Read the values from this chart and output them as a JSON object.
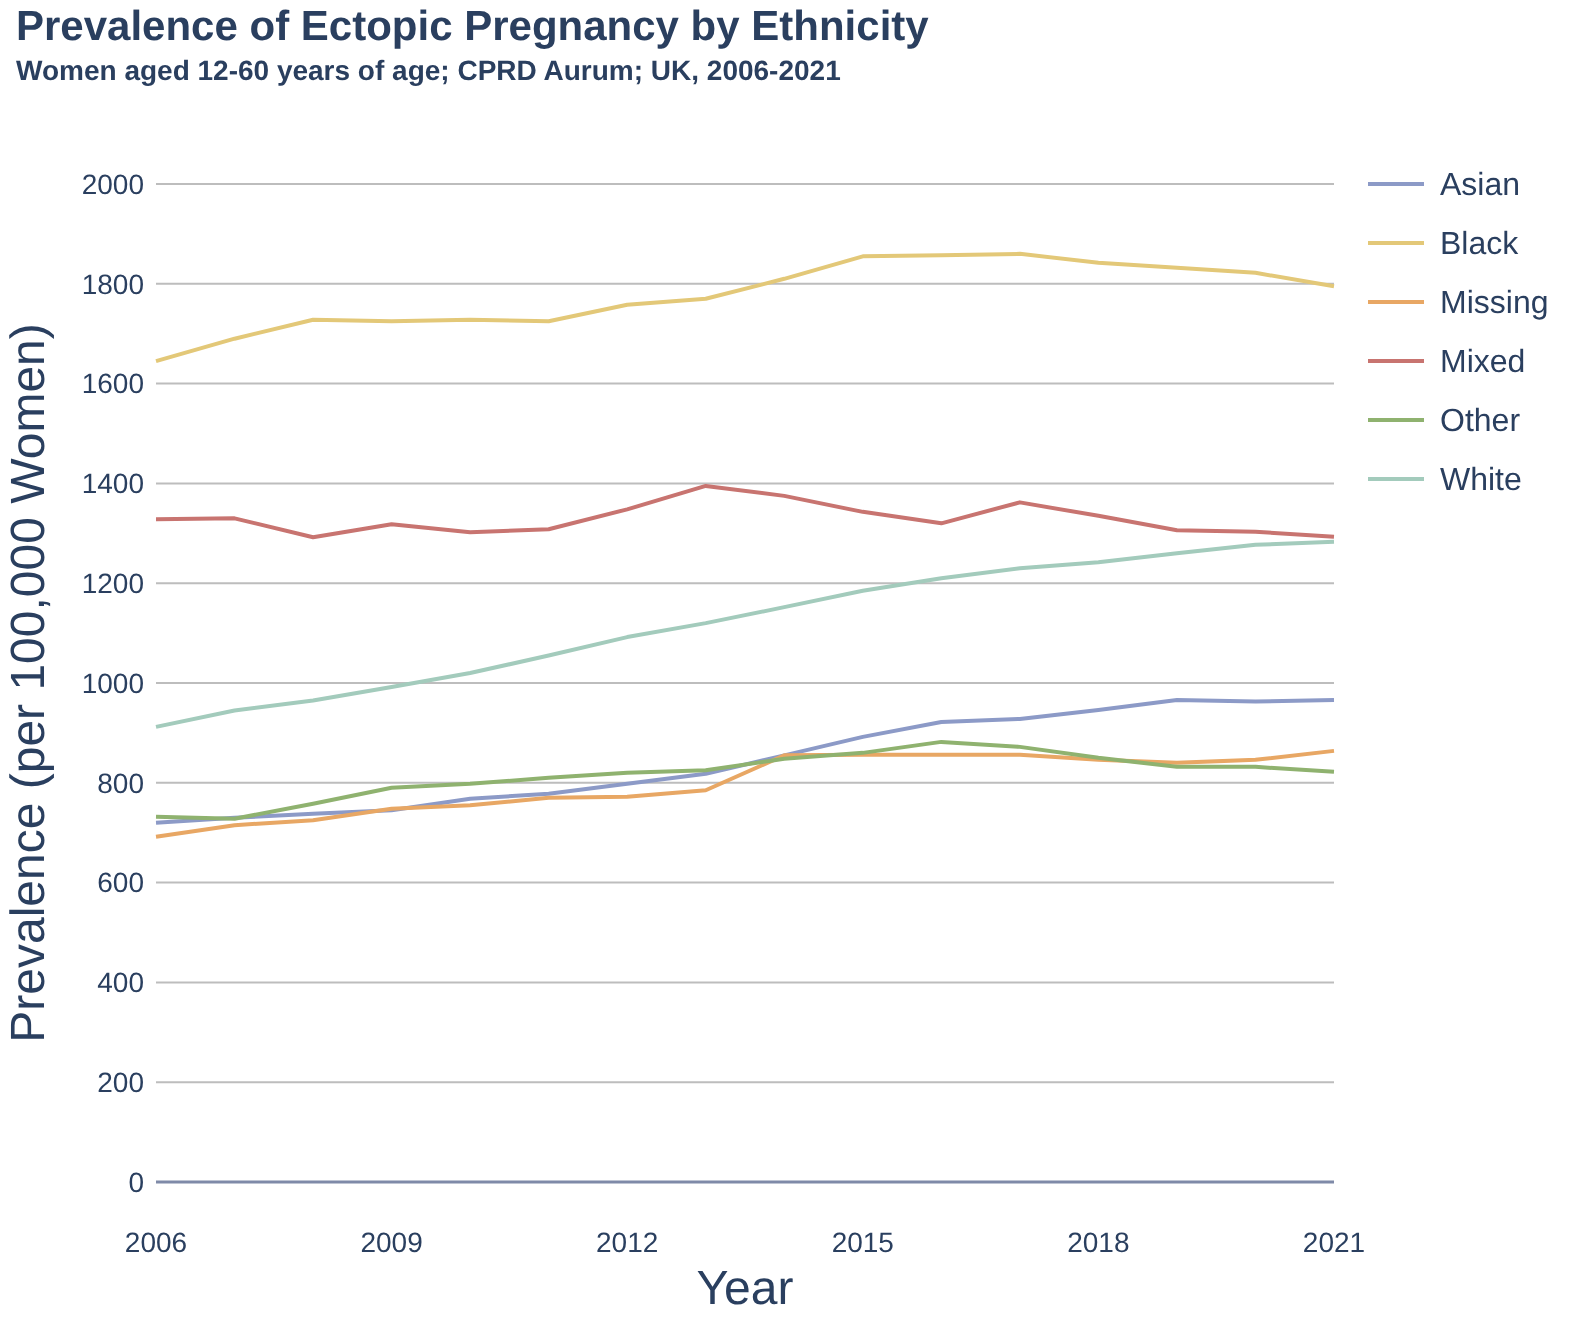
{
  "chart_data": {
    "type": "line",
    "title": "Prevalence of Ectopic Pregnancy by Ethnicity",
    "subtitle": "Women aged 12-60 years of age; CPRD Aurum; UK, 2006-2021",
    "xlabel": "Year",
    "ylabel": "Prevalence (per 100,000 Women)",
    "x": [
      2006,
      2007,
      2008,
      2009,
      2010,
      2011,
      2012,
      2013,
      2014,
      2015,
      2016,
      2017,
      2018,
      2019,
      2020,
      2021
    ],
    "xlim": [
      2006,
      2021
    ],
    "xticks": [
      2006,
      2009,
      2012,
      2015,
      2018,
      2021
    ],
    "ylim": [
      0,
      2000
    ],
    "yticks": [
      0,
      200,
      400,
      600,
      800,
      1000,
      1200,
      1400,
      1600,
      1800,
      2000
    ],
    "grid": "y",
    "legend": "top right",
    "series": [
      {
        "name": "Asian",
        "color": "#8c9ac7",
        "values": [
          720,
          730,
          738,
          745,
          768,
          778,
          798,
          818,
          855,
          892,
          922,
          928,
          946,
          966,
          963,
          966
        ]
      },
      {
        "name": "Black",
        "color": "#e3c878",
        "values": [
          1645,
          1690,
          1728,
          1725,
          1728,
          1725,
          1758,
          1770,
          1810,
          1855,
          1857,
          1860,
          1842,
          1832,
          1822,
          1795
        ]
      },
      {
        "name": "Missing",
        "color": "#e8a764",
        "values": [
          692,
          715,
          725,
          748,
          755,
          770,
          772,
          785,
          855,
          856,
          856,
          856,
          846,
          840,
          846,
          864
        ]
      },
      {
        "name": "Mixed",
        "color": "#c87470",
        "values": [
          1328,
          1330,
          1292,
          1318,
          1302,
          1308,
          1348,
          1395,
          1375,
          1343,
          1320,
          1362,
          1335,
          1306,
          1303,
          1293
        ]
      },
      {
        "name": "Other",
        "color": "#8fb26f",
        "values": [
          732,
          728,
          758,
          790,
          798,
          810,
          820,
          825,
          848,
          860,
          882,
          872,
          850,
          832,
          832,
          822
        ]
      },
      {
        "name": "White",
        "color": "#a3cbbc",
        "values": [
          912,
          945,
          965,
          992,
          1020,
          1055,
          1092,
          1120,
          1152,
          1185,
          1210,
          1230,
          1242,
          1260,
          1277,
          1283
        ]
      }
    ]
  }
}
